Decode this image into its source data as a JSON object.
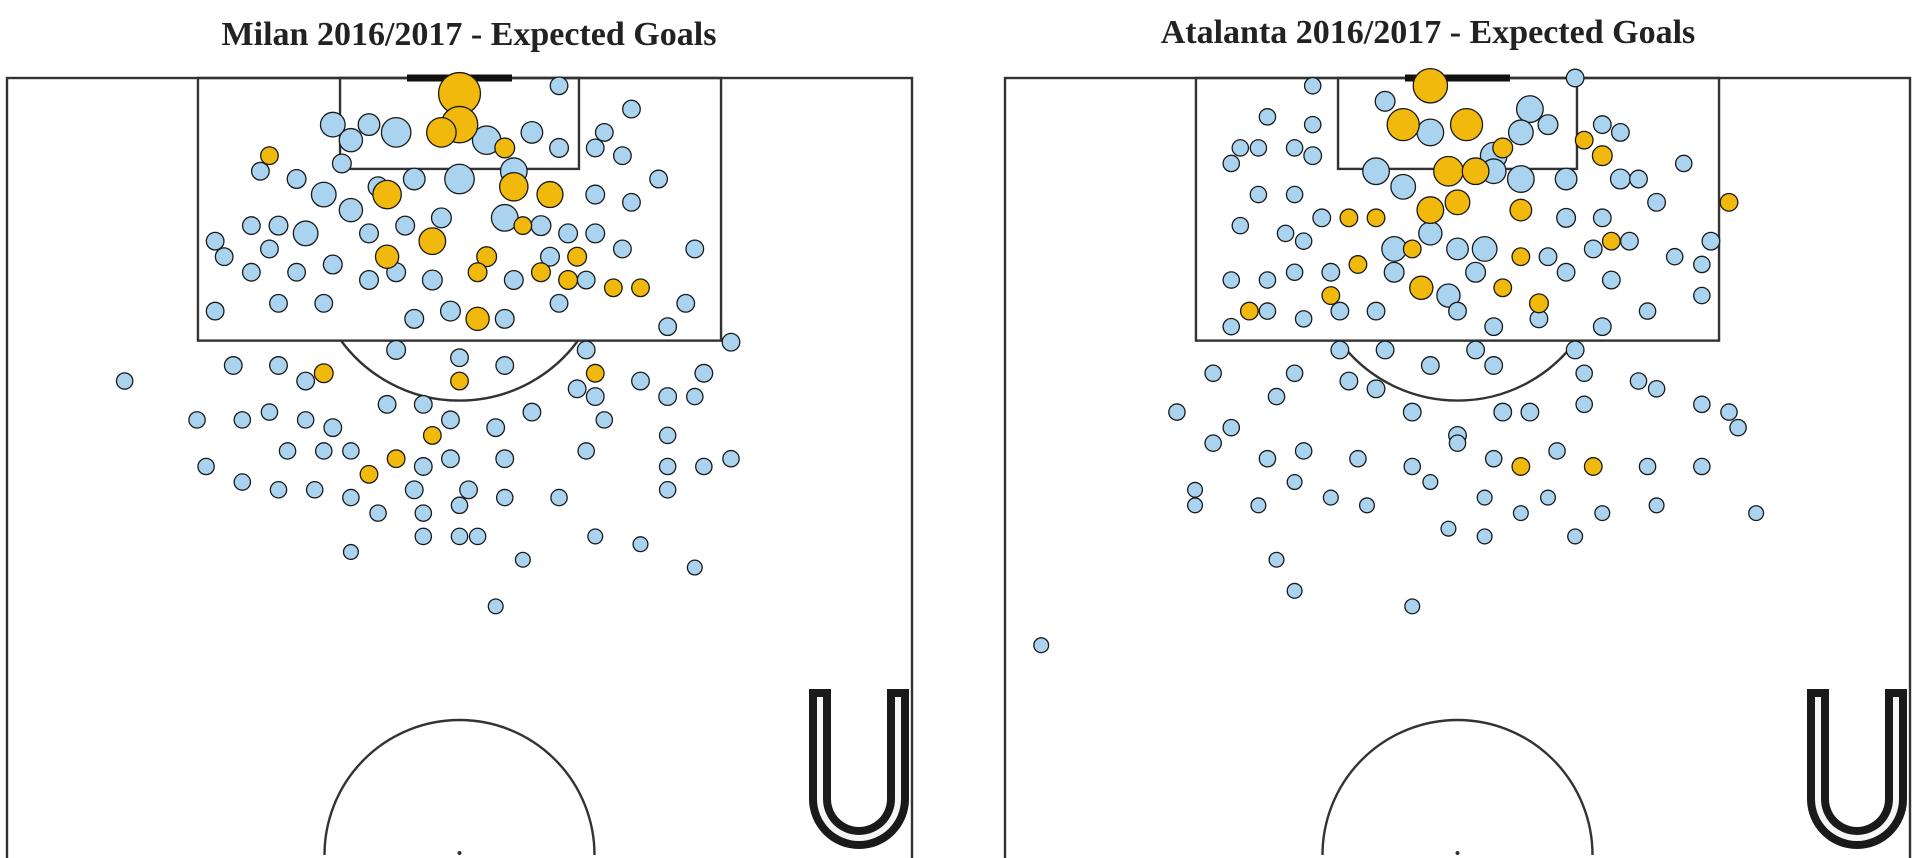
{
  "chart_data": [
    {
      "type": "scatter",
      "title": "Milan 2016/2017 - Expected Goals",
      "xlim": [
        0,
        100
      ],
      "ylim": [
        0,
        100
      ],
      "y_inverted": true,
      "series": [
        {
          "color": "#a9d3ee",
          "x": [
            61,
            69,
            36,
            40,
            43,
            38,
            58,
            53,
            66,
            61,
            65,
            68,
            37,
            56,
            50,
            45,
            41,
            35,
            32,
            28,
            65,
            72,
            69,
            55,
            38,
            33,
            30,
            27,
            23,
            24,
            29,
            40,
            44,
            48,
            59,
            62,
            65,
            68,
            76,
            27,
            32,
            36,
            40,
            43,
            47,
            56,
            60,
            64,
            23,
            30,
            35,
            45,
            49,
            55,
            61,
            75,
            73,
            80,
            13,
            25,
            30,
            33,
            43,
            50,
            55,
            64,
            63,
            65,
            70,
            73,
            77,
            76,
            21,
            26,
            29,
            33,
            36,
            42,
            46,
            49,
            54,
            58,
            66,
            73,
            22,
            31,
            35,
            38,
            46,
            49,
            55,
            64,
            73,
            77,
            80,
            26,
            30,
            34,
            38,
            45,
            51,
            55,
            61,
            73,
            41,
            46,
            50,
            46,
            50,
            52,
            38,
            57,
            65,
            70,
            76,
            54
          ],
          "values": [
            1,
            4,
            6,
            6,
            7,
            8,
            7,
            8,
            7,
            9,
            9,
            10,
            11,
            12,
            13,
            13,
            14,
            15,
            13,
            12,
            15,
            13,
            16,
            18,
            17,
            20,
            19,
            19,
            21,
            23,
            22,
            20,
            19,
            18,
            19,
            20,
            20,
            22,
            22,
            25,
            25,
            24,
            26,
            25,
            26,
            26,
            23,
            26,
            30,
            29,
            29,
            31,
            30,
            31,
            29,
            29,
            32,
            34,
            39,
            37,
            37,
            39,
            35,
            36,
            37,
            35,
            40,
            41,
            39,
            41,
            38,
            41,
            44,
            44,
            43,
            44,
            45,
            42,
            42,
            44,
            45,
            43,
            44,
            46,
            50,
            48,
            48,
            48,
            50,
            49,
            49,
            48,
            50,
            50,
            49,
            52,
            53,
            53,
            54,
            53,
            53,
            54,
            54,
            53,
            56,
            56,
            55,
            59,
            59,
            59,
            61,
            62,
            59,
            60,
            63,
            68
          ],
          "sizes": [
            0.04,
            0.04,
            0.12,
            0.08,
            0.2,
            0.1,
            0.08,
            0.18,
            0.04,
            0.05,
            0.04,
            0.04,
            0.05,
            0.15,
            0.2,
            0.08,
            0.06,
            0.12,
            0.05,
            0.04,
            0.05,
            0.04,
            0.04,
            0.15,
            0.1,
            0.12,
            0.05,
            0.04,
            0.04,
            0.04,
            0.04,
            0.05,
            0.05,
            0.06,
            0.06,
            0.05,
            0.05,
            0.04,
            0.04,
            0.04,
            0.04,
            0.05,
            0.05,
            0.05,
            0.06,
            0.05,
            0.05,
            0.04,
            0.04,
            0.04,
            0.04,
            0.05,
            0.06,
            0.05,
            0.04,
            0.04,
            0.04,
            0.04,
            0.03,
            0.04,
            0.04,
            0.04,
            0.05,
            0.04,
            0.04,
            0.04,
            0.04,
            0.04,
            0.04,
            0.04,
            0.04,
            0.03,
            0.03,
            0.03,
            0.03,
            0.03,
            0.04,
            0.04,
            0.04,
            0.04,
            0.04,
            0.04,
            0.03,
            0.03,
            0.03,
            0.03,
            0.03,
            0.03,
            0.04,
            0.04,
            0.04,
            0.03,
            0.03,
            0.03,
            0.03,
            0.03,
            0.03,
            0.03,
            0.03,
            0.04,
            0.04,
            0.03,
            0.03,
            0.03,
            0.03,
            0.03,
            0.03,
            0.03,
            0.03,
            0.03,
            0.02,
            0.02,
            0.02,
            0.02,
            0.02,
            0.02
          ]
        },
        {
          "color": "#f0b90b",
          "x": [
            50,
            50,
            48,
            55,
            29,
            42,
            56,
            60,
            47,
            42,
            53,
            63,
            57,
            52,
            59,
            62,
            67,
            70,
            52,
            35,
            50,
            65,
            47,
            43,
            40
          ],
          "values": [
            2,
            6,
            7,
            9,
            10,
            15,
            14,
            15,
            21,
            23,
            23,
            23,
            19,
            25,
            25,
            26,
            27,
            27,
            31,
            38,
            39,
            38,
            46,
            49,
            51
          ],
          "sizes": [
            0.5,
            0.35,
            0.2,
            0.06,
            0.04,
            0.18,
            0.18,
            0.14,
            0.15,
            0.1,
            0.06,
            0.05,
            0.04,
            0.05,
            0.05,
            0.05,
            0.04,
            0.04,
            0.1,
            0.05,
            0.04,
            0.04,
            0.04,
            0.04,
            0.04
          ]
        }
      ]
    },
    {
      "type": "scatter",
      "title": "Atalanta 2016/2017 - Expected Goals",
      "xlim": [
        0,
        100
      ],
      "ylim": [
        0,
        100
      ],
      "y_inverted": true,
      "series": [
        {
          "color": "#a9d3ee",
          "x": [
            34,
            42,
            63,
            58,
            60,
            29,
            34,
            47,
            57,
            66,
            68,
            26,
            28,
            32,
            34,
            25,
            41,
            54,
            54,
            57,
            62,
            68,
            70,
            75,
            28,
            32,
            35,
            44,
            62,
            66,
            72,
            26,
            31,
            33,
            43,
            47,
            50,
            53,
            60,
            65,
            69,
            78,
            25,
            29,
            32,
            36,
            43,
            49,
            52,
            62,
            67,
            74,
            77,
            25,
            29,
            33,
            37,
            41,
            50,
            54,
            59,
            66,
            71,
            77,
            23,
            32,
            37,
            42,
            47,
            52,
            54,
            63,
            64,
            70,
            72,
            19,
            25,
            30,
            38,
            41,
            45,
            50,
            55,
            58,
            64,
            77,
            80,
            81,
            23,
            29,
            33,
            39,
            45,
            50,
            54,
            61,
            71,
            77,
            21,
            21,
            28,
            32,
            36,
            40,
            47,
            53,
            57,
            60,
            66,
            72,
            83,
            49,
            53,
            63,
            30,
            32,
            45,
            4
          ],
          "values": [
            1,
            3,
            0,
            4,
            6,
            5,
            6,
            7,
            7,
            6,
            7,
            9,
            9,
            9,
            10,
            11,
            12,
            10,
            12,
            13,
            13,
            13,
            13,
            11,
            15,
            15,
            18,
            14,
            18,
            18,
            16,
            19,
            20,
            21,
            22,
            20,
            22,
            22,
            23,
            22,
            21,
            21,
            26,
            26,
            25,
            25,
            25,
            28,
            25,
            25,
            26,
            23,
            24,
            32,
            30,
            31,
            30,
            30,
            30,
            32,
            31,
            32,
            30,
            28,
            38,
            38,
            35,
            35,
            37,
            35,
            37,
            35,
            38,
            39,
            40,
            43,
            45,
            41,
            39,
            40,
            43,
            46,
            43,
            43,
            42,
            42,
            43,
            45,
            47,
            49,
            48,
            49,
            50,
            47,
            49,
            48,
            50,
            50,
            53,
            55,
            55,
            52,
            54,
            55,
            52,
            54,
            56,
            54,
            56,
            55,
            56,
            58,
            59,
            59,
            62,
            66,
            68,
            73
          ],
          "sizes": [
            0.03,
            0.06,
            0.04,
            0.15,
            0.06,
            0.03,
            0.03,
            0.15,
            0.12,
            0.04,
            0.04,
            0.03,
            0.03,
            0.03,
            0.04,
            0.03,
            0.15,
            0.15,
            0.12,
            0.15,
            0.08,
            0.06,
            0.04,
            0.03,
            0.03,
            0.03,
            0.04,
            0.12,
            0.05,
            0.04,
            0.04,
            0.03,
            0.03,
            0.03,
            0.12,
            0.1,
            0.08,
            0.12,
            0.04,
            0.04,
            0.04,
            0.04,
            0.03,
            0.03,
            0.03,
            0.04,
            0.06,
            0.1,
            0.06,
            0.04,
            0.04,
            0.03,
            0.03,
            0.03,
            0.03,
            0.03,
            0.04,
            0.04,
            0.04,
            0.04,
            0.04,
            0.04,
            0.03,
            0.03,
            0.03,
            0.03,
            0.04,
            0.04,
            0.04,
            0.04,
            0.04,
            0.04,
            0.03,
            0.03,
            0.03,
            0.03,
            0.03,
            0.03,
            0.04,
            0.04,
            0.04,
            0.04,
            0.04,
            0.04,
            0.03,
            0.03,
            0.03,
            0.03,
            0.03,
            0.03,
            0.03,
            0.03,
            0.03,
            0.03,
            0.03,
            0.03,
            0.03,
            0.03,
            0.02,
            0.02,
            0.02,
            0.02,
            0.02,
            0.02,
            0.02,
            0.02,
            0.02,
            0.02,
            0.02,
            0.02,
            0.02,
            0.02,
            0.02,
            0.02,
            0.02,
            0.02,
            0.02,
            0.02
          ]
        },
        {
          "color": "#f0b90b",
          "x": [
            47,
            44,
            51,
            49,
            52,
            47,
            50,
            46,
            57,
            64,
            66,
            80,
            38,
            39,
            41,
            45,
            57,
            55,
            59,
            36,
            27,
            67,
            65,
            57,
            55
          ],
          "values": [
            1,
            6,
            6,
            12,
            12,
            17,
            16,
            27,
            17,
            8,
            10,
            16,
            18,
            24,
            18,
            22,
            23,
            27,
            29,
            28,
            30,
            21,
            50,
            50,
            9
          ],
          "sizes": [
            0.3,
            0.25,
            0.25,
            0.2,
            0.15,
            0.15,
            0.12,
            0.1,
            0.08,
            0.04,
            0.06,
            0.04,
            0.04,
            0.04,
            0.04,
            0.04,
            0.04,
            0.04,
            0.05,
            0.04,
            0.04,
            0.04,
            0.04,
            0.04,
            0.06
          ]
        }
      ]
    }
  ]
}
